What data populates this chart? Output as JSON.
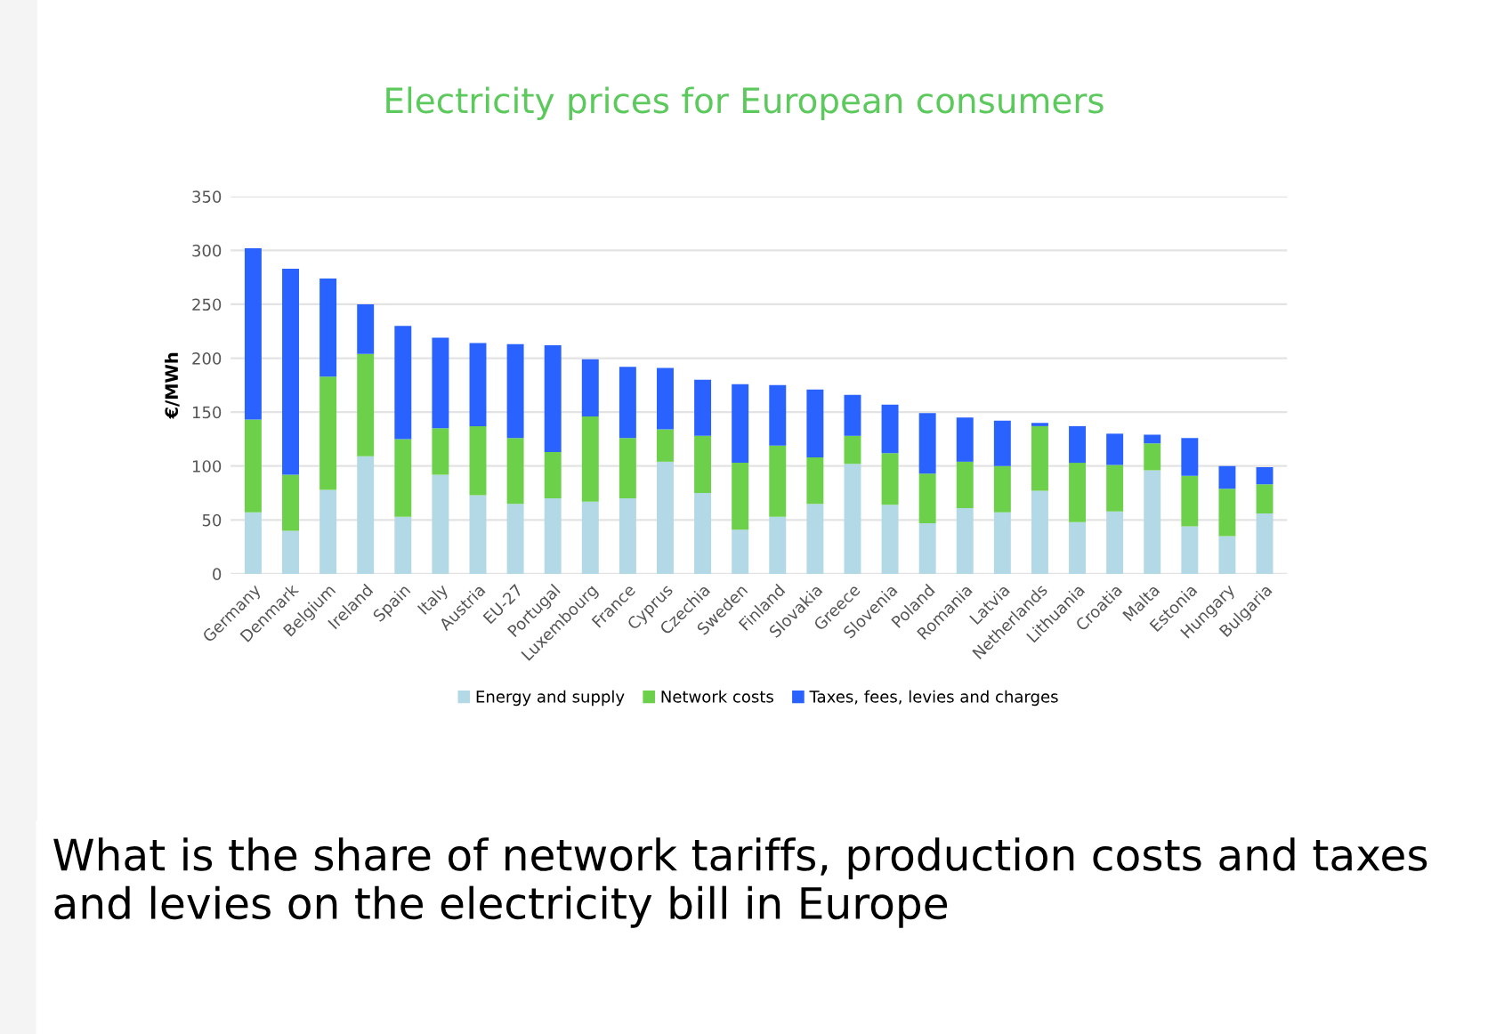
{
  "chart_data": {
    "type": "bar",
    "title": "Electricity prices for European consumers",
    "ylabel": "€/MWh",
    "categories": [
      "Germany",
      "Denmark",
      "Belgium",
      "Ireland",
      "Spain",
      "Italy",
      "Austria",
      "EU-27",
      "Portugal",
      "Luxembourg",
      "France",
      "Cyprus",
      "Czechia",
      "Sweden",
      "Finland",
      "Slovakia",
      "Greece",
      "Slovenia",
      "Poland",
      "Romania",
      "Latvia",
      "Netherlands",
      "Lithuania",
      "Croatia",
      "Malta",
      "Estonia",
      "Hungary",
      "Bulgaria"
    ],
    "stacked": true,
    "series": [
      {
        "name": "Energy and supply",
        "color": "#b3d8e6",
        "values": [
          57,
          40,
          78,
          109,
          53,
          92,
          73,
          65,
          70,
          67,
          70,
          104,
          75,
          41,
          53,
          65,
          102,
          64,
          47,
          61,
          57,
          77,
          48,
          58,
          96,
          44,
          35,
          56
        ]
      },
      {
        "name": "Network costs",
        "color": "#6dd04b",
        "values": [
          86,
          52,
          105,
          95,
          72,
          43,
          64,
          61,
          43,
          79,
          56,
          30,
          53,
          62,
          66,
          43,
          26,
          48,
          46,
          43,
          43,
          60,
          55,
          43,
          25,
          47,
          44,
          27
        ]
      },
      {
        "name": "Taxes, fees, levies and charges",
        "color": "#2962ff",
        "values": [
          159,
          191,
          91,
          46,
          105,
          84,
          77,
          87,
          99,
          53,
          66,
          57,
          52,
          73,
          56,
          63,
          38,
          45,
          56,
          41,
          42,
          3,
          34,
          29,
          8,
          35,
          21,
          16
        ]
      }
    ],
    "ylim": [
      0,
      350
    ],
    "yticks": [
      0,
      50,
      100,
      150,
      200,
      250,
      300,
      350
    ],
    "grid": "y",
    "legend": "bottom",
    "annotations": [
      "What is the share of network tariffs, production costs and taxes and levies on the electricity bill in Europe"
    ]
  }
}
